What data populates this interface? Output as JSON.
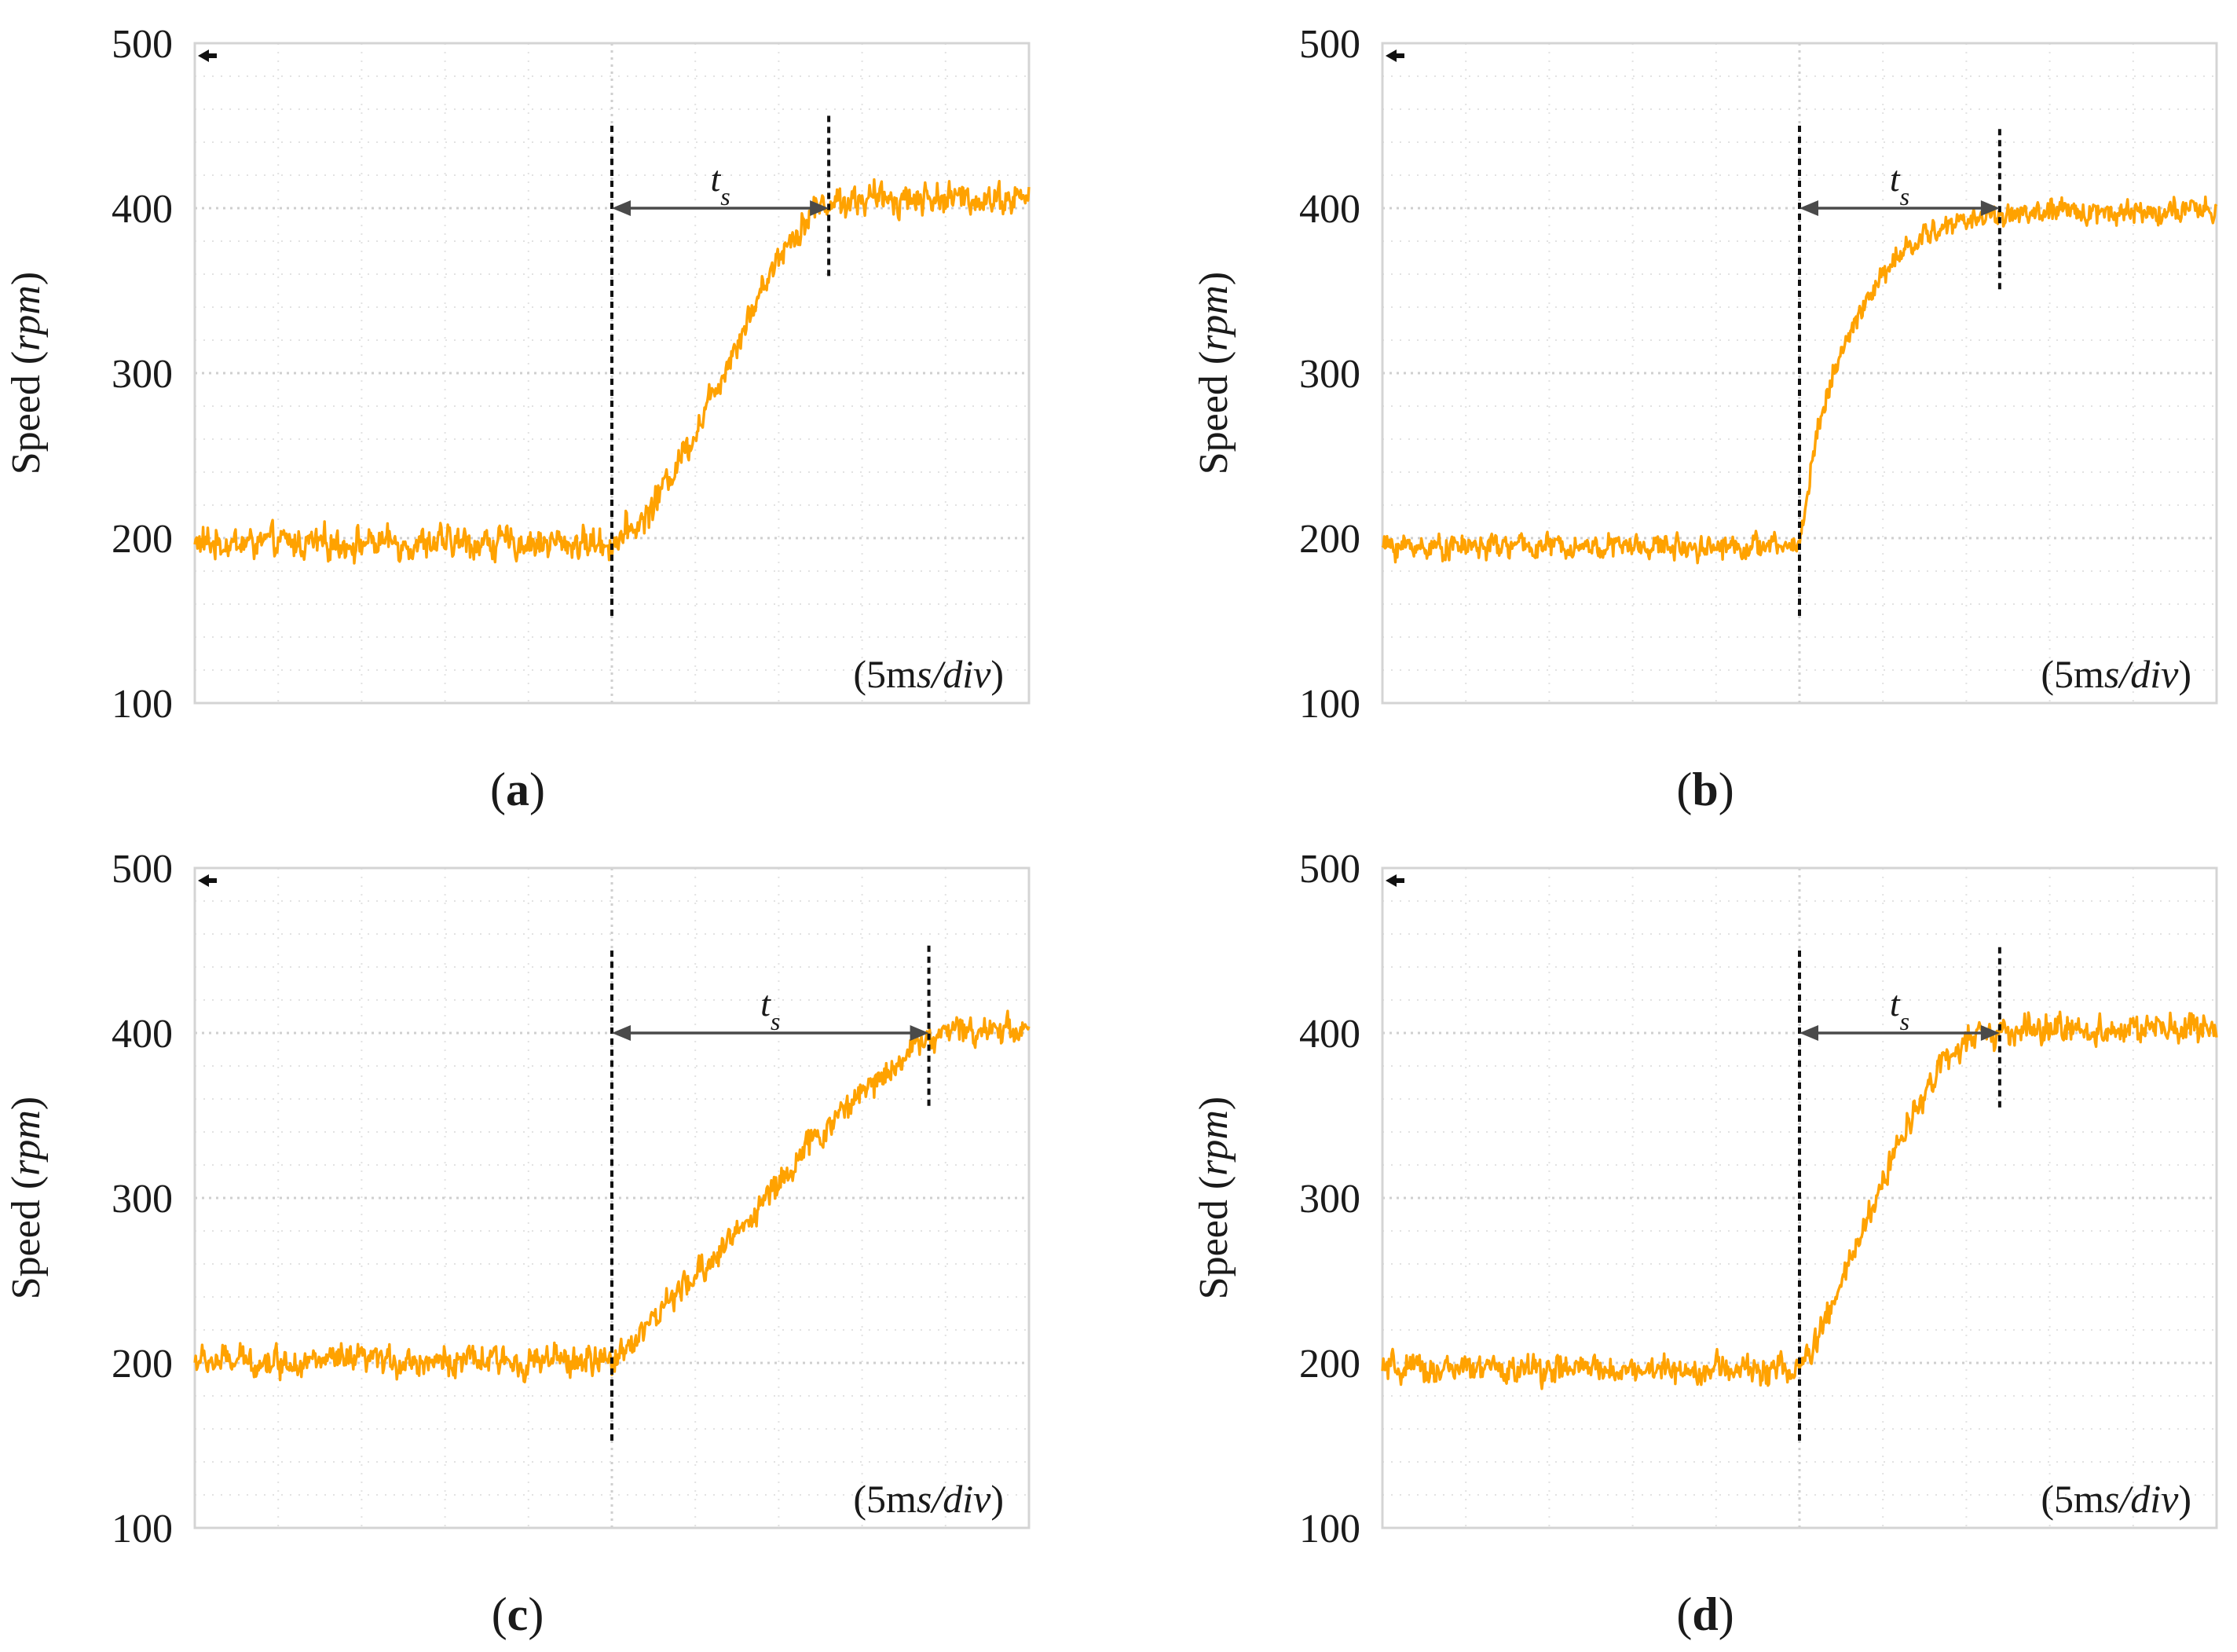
{
  "figure": {
    "panels_order": [
      "a",
      "b",
      "c",
      "d"
    ]
  },
  "chart_data": [
    {
      "type": "line",
      "panel": "a",
      "caption_open": "(",
      "caption_letter": "a",
      "caption_close": ")",
      "ylabel_prefix": "Speed (",
      "ylabel_unit": "rpm",
      "ylabel_suffix": ")",
      "ylim": [
        100,
        500
      ],
      "yticks": [
        100,
        200,
        300,
        400,
        500
      ],
      "ytick_labels": [
        "100",
        "200",
        "300",
        "400",
        "500"
      ],
      "x_divisions": 10,
      "x_unit": "ms",
      "time_per_div_ms": 5,
      "xlim_ms": [
        0,
        50
      ],
      "grid": true,
      "div_annotation_prefix": "(5m",
      "div_annotation_italic": "s/div",
      "div_annotation_suffix": ")",
      "settling_label_main": "t",
      "settling_label_sub": "s",
      "step_start_ms": 25,
      "settle_ms": 38,
      "initial_speed": 197,
      "final_speed": 406,
      "noise_amplitude": 12,
      "response_shape": "s-curve",
      "series": [
        {
          "name": "speed",
          "color": "#ffa200",
          "x_ms": [
            0,
            24,
            25,
            27,
            30,
            33,
            35,
            37,
            38,
            42,
            46,
            50
          ],
          "values": [
            197,
            197,
            197,
            212,
            265,
            330,
            372,
            398,
            404,
            406,
            406,
            406
          ]
        }
      ]
    },
    {
      "type": "line",
      "panel": "b",
      "caption_open": "(",
      "caption_letter": "b",
      "caption_close": ")",
      "ylabel_prefix": "Speed (",
      "ylabel_unit": "rpm",
      "ylabel_suffix": ")",
      "ylim": [
        100,
        500
      ],
      "yticks": [
        100,
        200,
        300,
        400,
        500
      ],
      "ytick_labels": [
        "100",
        "200",
        "300",
        "400",
        "500"
      ],
      "x_divisions": 10,
      "x_unit": "ms",
      "time_per_div_ms": 5,
      "xlim_ms": [
        0,
        50
      ],
      "grid": true,
      "div_annotation_prefix": "(5m",
      "div_annotation_italic": "s/div",
      "div_annotation_suffix": ")",
      "settling_label_main": "t",
      "settling_label_sub": "s",
      "step_start_ms": 25,
      "settle_ms": 37,
      "initial_speed": 195,
      "final_speed": 398,
      "noise_amplitude": 9,
      "response_shape": "exponential",
      "series": [
        {
          "name": "speed",
          "color": "#ffa200",
          "x_ms": [
            0,
            24,
            25,
            26,
            27,
            29,
            31,
            33,
            35,
            37,
            42,
            50
          ],
          "values": [
            195,
            195,
            196,
            262,
            300,
            345,
            372,
            386,
            393,
            396,
            398,
            398
          ]
        }
      ]
    },
    {
      "type": "line",
      "panel": "c",
      "caption_open": "(",
      "caption_letter": "c",
      "caption_close": ")",
      "ylabel_prefix": "Speed (",
      "ylabel_unit": "rpm",
      "ylabel_suffix": ")",
      "ylim": [
        100,
        500
      ],
      "yticks": [
        100,
        200,
        300,
        400,
        500
      ],
      "ytick_labels": [
        "100",
        "200",
        "300",
        "400",
        "500"
      ],
      "x_divisions": 10,
      "x_unit": "ms",
      "time_per_div_ms": 5,
      "xlim_ms": [
        0,
        50
      ],
      "grid": true,
      "div_annotation_prefix": "(5m",
      "div_annotation_italic": "s/div",
      "div_annotation_suffix": ")",
      "settling_label_main": "t",
      "settling_label_sub": "s",
      "step_start_ms": 25,
      "settle_ms": 44,
      "initial_speed": 201,
      "final_speed": 403,
      "noise_amplitude": 11,
      "response_shape": "ramp",
      "series": [
        {
          "name": "speed",
          "color": "#ffa200",
          "x_ms": [
            0,
            24,
            25,
            27,
            30,
            33,
            36,
            39,
            42,
            44,
            47,
            50
          ],
          "values": [
            201,
            201,
            201,
            222,
            252,
            285,
            322,
            355,
            382,
            398,
            403,
            403
          ]
        }
      ]
    },
    {
      "type": "line",
      "panel": "d",
      "caption_open": "(",
      "caption_letter": "d",
      "caption_close": ")",
      "ylabel_prefix": "Speed (",
      "ylabel_unit": "rpm",
      "ylabel_suffix": ")",
      "ylim": [
        100,
        500
      ],
      "yticks": [
        100,
        200,
        300,
        400,
        500
      ],
      "ytick_labels": [
        "100",
        "200",
        "300",
        "400",
        "500"
      ],
      "x_divisions": 10,
      "x_unit": "ms",
      "time_per_div_ms": 5,
      "xlim_ms": [
        0,
        50
      ],
      "grid": true,
      "div_annotation_prefix": "(5m",
      "div_annotation_italic": "s/div",
      "div_annotation_suffix": ")",
      "settling_label_main": "t",
      "settling_label_sub": "s",
      "step_start_ms": 25,
      "settle_ms": 37,
      "initial_speed": 196,
      "final_speed": 402,
      "noise_amplitude": 11,
      "response_shape": "s-curve",
      "series": [
        {
          "name": "speed",
          "color": "#ffa200",
          "x_ms": [
            0,
            24,
            25,
            26,
            28,
            31,
            33,
            35,
            37,
            40,
            45,
            50
          ],
          "values": [
            196,
            196,
            196,
            212,
            260,
            335,
            375,
            395,
            400,
            402,
            402,
            402
          ]
        }
      ]
    }
  ]
}
